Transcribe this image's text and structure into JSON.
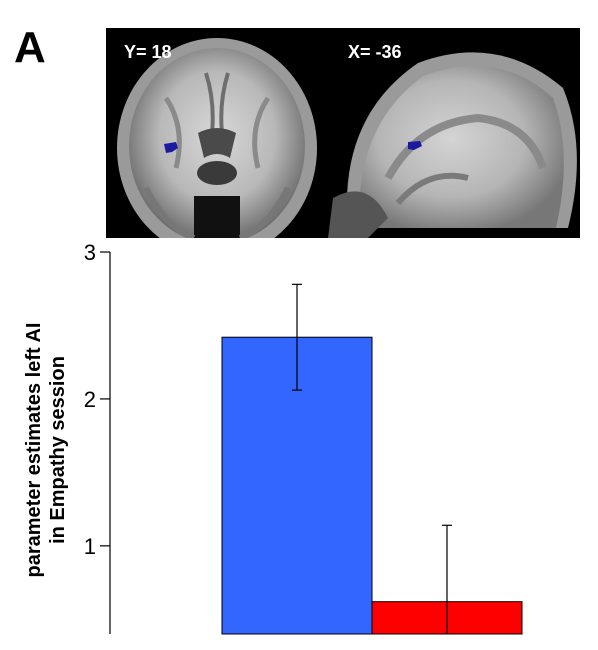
{
  "panel_label": "A",
  "brain_slices": [
    {
      "label": "Y= 18",
      "view": "coronal"
    },
    {
      "label": "X= -36",
      "view": "sagittal"
    }
  ],
  "colors": {
    "blob": "#1a1aa0",
    "bar_1": "#3366ff",
    "bar_2": "#ff0000",
    "axis": "#000000"
  },
  "chart_data": {
    "type": "bar",
    "ylabel_lines": [
      "parameter estimates left AI",
      "in Empathy session"
    ],
    "xlabel": "",
    "ylim": [
      0.4,
      3.0
    ],
    "yticks": [
      1,
      2,
      3
    ],
    "categories": [
      "",
      ""
    ],
    "values": [
      2.42,
      0.62
    ],
    "error": [
      0.36,
      0.52
    ],
    "bar_colors": [
      "#3366ff",
      "#ff0000"
    ]
  }
}
